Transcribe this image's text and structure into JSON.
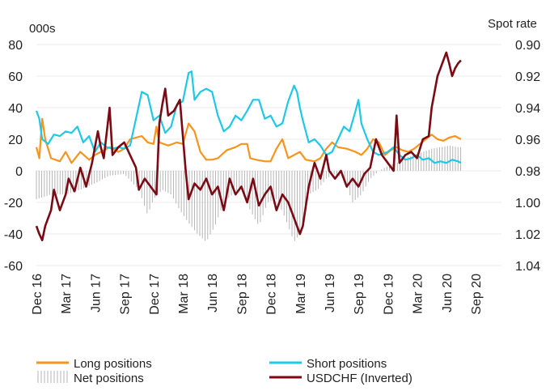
{
  "chart_data": {
    "type": "line",
    "title": "",
    "left_axis": {
      "label": "000s",
      "ticks": [
        80,
        60,
        40,
        20,
        0,
        -20,
        -40,
        -60
      ],
      "range": [
        -60,
        80
      ]
    },
    "right_axis": {
      "label": "Spot rate",
      "ticks": [
        "0.90",
        "0.92",
        "0.94",
        "0.96",
        "0.98",
        "1.00",
        "1.02",
        "1.04"
      ],
      "range": [
        0.9,
        1.04
      ],
      "inverted": true
    },
    "x_ticks": [
      "Dec 16",
      "Mar 17",
      "Jun 17",
      "Sep 17",
      "Dec 17",
      "Mar 18",
      "Jun 18",
      "Sep 18",
      "Dec 18",
      "Mar 19",
      "Jun 19",
      "Sep 19",
      "Dec 19",
      "Mar 20",
      "Jun 20",
      "Sep 20"
    ],
    "legend_placement": "bottom",
    "colors": {
      "long": "#f7941d",
      "short": "#1ec8e6",
      "net": "#b5b5b5",
      "usdchf": "#7a0a14"
    },
    "series": [
      {
        "name": "Long positions",
        "axis": "left",
        "points": [
          [
            0,
            15
          ],
          [
            0.1,
            8
          ],
          [
            0.2,
            33
          ],
          [
            0.3,
            20
          ],
          [
            0.5,
            8
          ],
          [
            0.8,
            6
          ],
          [
            1.0,
            12
          ],
          [
            1.2,
            5
          ],
          [
            1.5,
            12
          ],
          [
            1.8,
            7
          ],
          [
            2.0,
            10
          ],
          [
            2.2,
            12
          ],
          [
            2.5,
            15
          ],
          [
            2.8,
            12
          ],
          [
            3.0,
            14
          ],
          [
            3.2,
            20
          ],
          [
            3.4,
            21
          ],
          [
            3.6,
            22
          ],
          [
            3.8,
            18
          ],
          [
            4.0,
            17
          ],
          [
            4.1,
            28
          ],
          [
            4.2,
            18
          ],
          [
            4.5,
            16
          ],
          [
            4.8,
            18
          ],
          [
            5.0,
            17
          ],
          [
            5.2,
            30
          ],
          [
            5.4,
            25
          ],
          [
            5.6,
            12
          ],
          [
            5.8,
            7
          ],
          [
            6.0,
            7
          ],
          [
            6.2,
            8
          ],
          [
            6.5,
            13
          ],
          [
            6.8,
            15
          ],
          [
            7.0,
            17
          ],
          [
            7.2,
            17
          ],
          [
            7.3,
            8
          ],
          [
            7.5,
            7
          ],
          [
            7.8,
            6
          ],
          [
            8.0,
            6
          ],
          [
            8.2,
            14
          ],
          [
            8.4,
            20
          ],
          [
            8.6,
            8
          ],
          [
            8.8,
            10
          ],
          [
            9.0,
            12
          ],
          [
            9.2,
            7
          ],
          [
            9.5,
            6
          ],
          [
            9.7,
            8
          ],
          [
            9.9,
            14
          ],
          [
            10.1,
            18
          ],
          [
            10.3,
            15
          ],
          [
            10.6,
            14
          ],
          [
            10.9,
            12
          ],
          [
            11.1,
            10
          ],
          [
            11.3,
            14
          ],
          [
            11.5,
            20
          ],
          [
            11.7,
            18
          ],
          [
            11.9,
            10
          ],
          [
            12.1,
            13
          ],
          [
            12.3,
            15
          ],
          [
            12.5,
            13
          ],
          [
            12.7,
            12
          ],
          [
            12.9,
            14
          ],
          [
            13.1,
            17
          ],
          [
            13.3,
            20
          ],
          [
            13.5,
            23
          ],
          [
            13.7,
            20
          ],
          [
            13.9,
            19
          ],
          [
            14.1,
            21
          ],
          [
            14.3,
            22
          ],
          [
            14.5,
            20
          ]
        ]
      },
      {
        "name": "Short positions",
        "axis": "left",
        "points": [
          [
            0,
            38
          ],
          [
            0.1,
            33
          ],
          [
            0.2,
            20
          ],
          [
            0.4,
            17
          ],
          [
            0.6,
            23
          ],
          [
            0.8,
            22
          ],
          [
            1.0,
            25
          ],
          [
            1.2,
            24
          ],
          [
            1.4,
            28
          ],
          [
            1.6,
            18
          ],
          [
            1.8,
            22
          ],
          [
            2.0,
            12
          ],
          [
            2.2,
            18
          ],
          [
            2.4,
            15
          ],
          [
            2.6,
            14
          ],
          [
            2.8,
            15
          ],
          [
            3.0,
            14
          ],
          [
            3.2,
            16
          ],
          [
            3.4,
            33
          ],
          [
            3.6,
            50
          ],
          [
            3.8,
            48
          ],
          [
            4.0,
            32
          ],
          [
            4.2,
            35
          ],
          [
            4.4,
            24
          ],
          [
            4.6,
            28
          ],
          [
            4.8,
            42
          ],
          [
            5.0,
            44
          ],
          [
            5.2,
            62
          ],
          [
            5.3,
            63
          ],
          [
            5.4,
            45
          ],
          [
            5.6,
            50
          ],
          [
            5.8,
            52
          ],
          [
            6.0,
            50
          ],
          [
            6.2,
            35
          ],
          [
            6.4,
            25
          ],
          [
            6.6,
            28
          ],
          [
            6.8,
            35
          ],
          [
            7.0,
            32
          ],
          [
            7.2,
            38
          ],
          [
            7.4,
            45
          ],
          [
            7.6,
            45
          ],
          [
            7.8,
            33
          ],
          [
            8.0,
            35
          ],
          [
            8.2,
            28
          ],
          [
            8.4,
            30
          ],
          [
            8.6,
            44
          ],
          [
            8.8,
            54
          ],
          [
            8.9,
            50
          ],
          [
            9.0,
            40
          ],
          [
            9.1,
            32
          ],
          [
            9.3,
            18
          ],
          [
            9.5,
            20
          ],
          [
            9.7,
            16
          ],
          [
            9.9,
            10
          ],
          [
            10.1,
            12
          ],
          [
            10.3,
            20
          ],
          [
            10.5,
            28
          ],
          [
            10.7,
            25
          ],
          [
            10.9,
            38
          ],
          [
            11.0,
            45
          ],
          [
            11.1,
            30
          ],
          [
            11.3,
            20
          ],
          [
            11.5,
            12
          ],
          [
            11.7,
            10
          ],
          [
            12.0,
            12
          ],
          [
            12.2,
            15
          ],
          [
            12.4,
            10
          ],
          [
            12.6,
            7
          ],
          [
            12.8,
            8
          ],
          [
            13.0,
            10
          ],
          [
            13.2,
            7
          ],
          [
            13.4,
            8
          ],
          [
            13.6,
            5
          ],
          [
            13.8,
            6
          ],
          [
            14.0,
            5
          ],
          [
            14.2,
            7
          ],
          [
            14.4,
            6
          ],
          [
            14.5,
            5
          ]
        ]
      },
      {
        "name": "Net positions",
        "axis": "left",
        "points": [
          [
            0,
            -18
          ],
          [
            0.5,
            -15
          ],
          [
            1.0,
            -15
          ],
          [
            1.5,
            -12
          ],
          [
            2.0,
            -8
          ],
          [
            2.5,
            -3
          ],
          [
            3.0,
            -2
          ],
          [
            3.5,
            -12
          ],
          [
            3.8,
            -28
          ],
          [
            4.0,
            -18
          ],
          [
            4.3,
            -12
          ],
          [
            4.6,
            -15
          ],
          [
            4.9,
            -25
          ],
          [
            5.2,
            -33
          ],
          [
            5.5,
            -40
          ],
          [
            5.8,
            -45
          ],
          [
            6.1,
            -35
          ],
          [
            6.4,
            -20
          ],
          [
            6.7,
            -15
          ],
          [
            7.0,
            -10
          ],
          [
            7.3,
            -25
          ],
          [
            7.6,
            -35
          ],
          [
            7.9,
            -20
          ],
          [
            8.2,
            -18
          ],
          [
            8.5,
            -30
          ],
          [
            8.8,
            -45
          ],
          [
            9.0,
            -40
          ],
          [
            9.3,
            -15
          ],
          [
            9.6,
            -12
          ],
          [
            9.9,
            -5
          ],
          [
            10.2,
            -2
          ],
          [
            10.5,
            -5
          ],
          [
            10.8,
            -20
          ],
          [
            11.1,
            -15
          ],
          [
            11.4,
            -5
          ],
          [
            11.7,
            0
          ],
          [
            12.0,
            3
          ],
          [
            12.3,
            5
          ],
          [
            12.6,
            8
          ],
          [
            12.9,
            10
          ],
          [
            13.2,
            12
          ],
          [
            13.5,
            14
          ],
          [
            13.8,
            15
          ],
          [
            14.1,
            16
          ],
          [
            14.4,
            15
          ],
          [
            14.5,
            15
          ]
        ]
      },
      {
        "name": "USDCHF (Inverted)",
        "axis": "right",
        "points": [
          [
            0,
            1.015
          ],
          [
            0.1,
            1.02
          ],
          [
            0.2,
            1.024
          ],
          [
            0.3,
            1.015
          ],
          [
            0.5,
            1.005
          ],
          [
            0.6,
            0.992
          ],
          [
            0.8,
            1.005
          ],
          [
            1.0,
            0.995
          ],
          [
            1.1,
            0.985
          ],
          [
            1.3,
            0.993
          ],
          [
            1.5,
            0.978
          ],
          [
            1.7,
            0.99
          ],
          [
            1.9,
            0.975
          ],
          [
            2.1,
            0.955
          ],
          [
            2.2,
            0.965
          ],
          [
            2.3,
            0.972
          ],
          [
            2.5,
            0.94
          ],
          [
            2.6,
            0.97
          ],
          [
            2.8,
            0.965
          ],
          [
            3.0,
            0.962
          ],
          [
            3.2,
            0.97
          ],
          [
            3.4,
            0.978
          ],
          [
            3.5,
            0.992
          ],
          [
            3.7,
            0.985
          ],
          [
            3.9,
            0.99
          ],
          [
            4.1,
            0.995
          ],
          [
            4.2,
            0.95
          ],
          [
            4.3,
            0.938
          ],
          [
            4.4,
            0.928
          ],
          [
            4.5,
            0.945
          ],
          [
            4.7,
            0.942
          ],
          [
            4.9,
            0.935
          ],
          [
            5.1,
            0.98
          ],
          [
            5.2,
            0.998
          ],
          [
            5.4,
            0.988
          ],
          [
            5.6,
            0.992
          ],
          [
            5.8,
            0.985
          ],
          [
            6.0,
            0.995
          ],
          [
            6.2,
            0.99
          ],
          [
            6.4,
            1.005
          ],
          [
            6.6,
            0.985
          ],
          [
            6.8,
            0.995
          ],
          [
            7.0,
            0.99
          ],
          [
            7.2,
            1.0
          ],
          [
            7.4,
            0.985
          ],
          [
            7.6,
            1.002
          ],
          [
            7.8,
            0.995
          ],
          [
            8.0,
            0.99
          ],
          [
            8.2,
            1.005
          ],
          [
            8.4,
            0.995
          ],
          [
            8.6,
            1.0
          ],
          [
            8.8,
            1.01
          ],
          [
            9.0,
            1.02
          ],
          [
            9.1,
            1.015
          ],
          [
            9.3,
            0.99
          ],
          [
            9.5,
            0.975
          ],
          [
            9.7,
            0.985
          ],
          [
            9.9,
            0.97
          ],
          [
            10.0,
            0.98
          ],
          [
            10.2,
            0.985
          ],
          [
            10.4,
            0.98
          ],
          [
            10.6,
            0.99
          ],
          [
            10.8,
            0.985
          ],
          [
            11.0,
            0.99
          ],
          [
            11.2,
            0.982
          ],
          [
            11.4,
            0.978
          ],
          [
            11.6,
            0.96
          ],
          [
            11.8,
            0.97
          ],
          [
            12.0,
            0.975
          ],
          [
            12.2,
            0.98
          ],
          [
            12.3,
            0.945
          ],
          [
            12.4,
            0.975
          ],
          [
            12.6,
            0.97
          ],
          [
            12.8,
            0.968
          ],
          [
            13.0,
            0.972
          ],
          [
            13.2,
            0.96
          ],
          [
            13.4,
            0.958
          ],
          [
            13.5,
            0.94
          ],
          [
            13.6,
            0.93
          ],
          [
            13.7,
            0.92
          ],
          [
            13.8,
            0.915
          ],
          [
            13.9,
            0.91
          ],
          [
            14.0,
            0.905
          ],
          [
            14.1,
            0.912
          ],
          [
            14.2,
            0.92
          ],
          [
            14.3,
            0.915
          ],
          [
            14.4,
            0.912
          ],
          [
            14.5,
            0.91
          ]
        ]
      }
    ]
  }
}
